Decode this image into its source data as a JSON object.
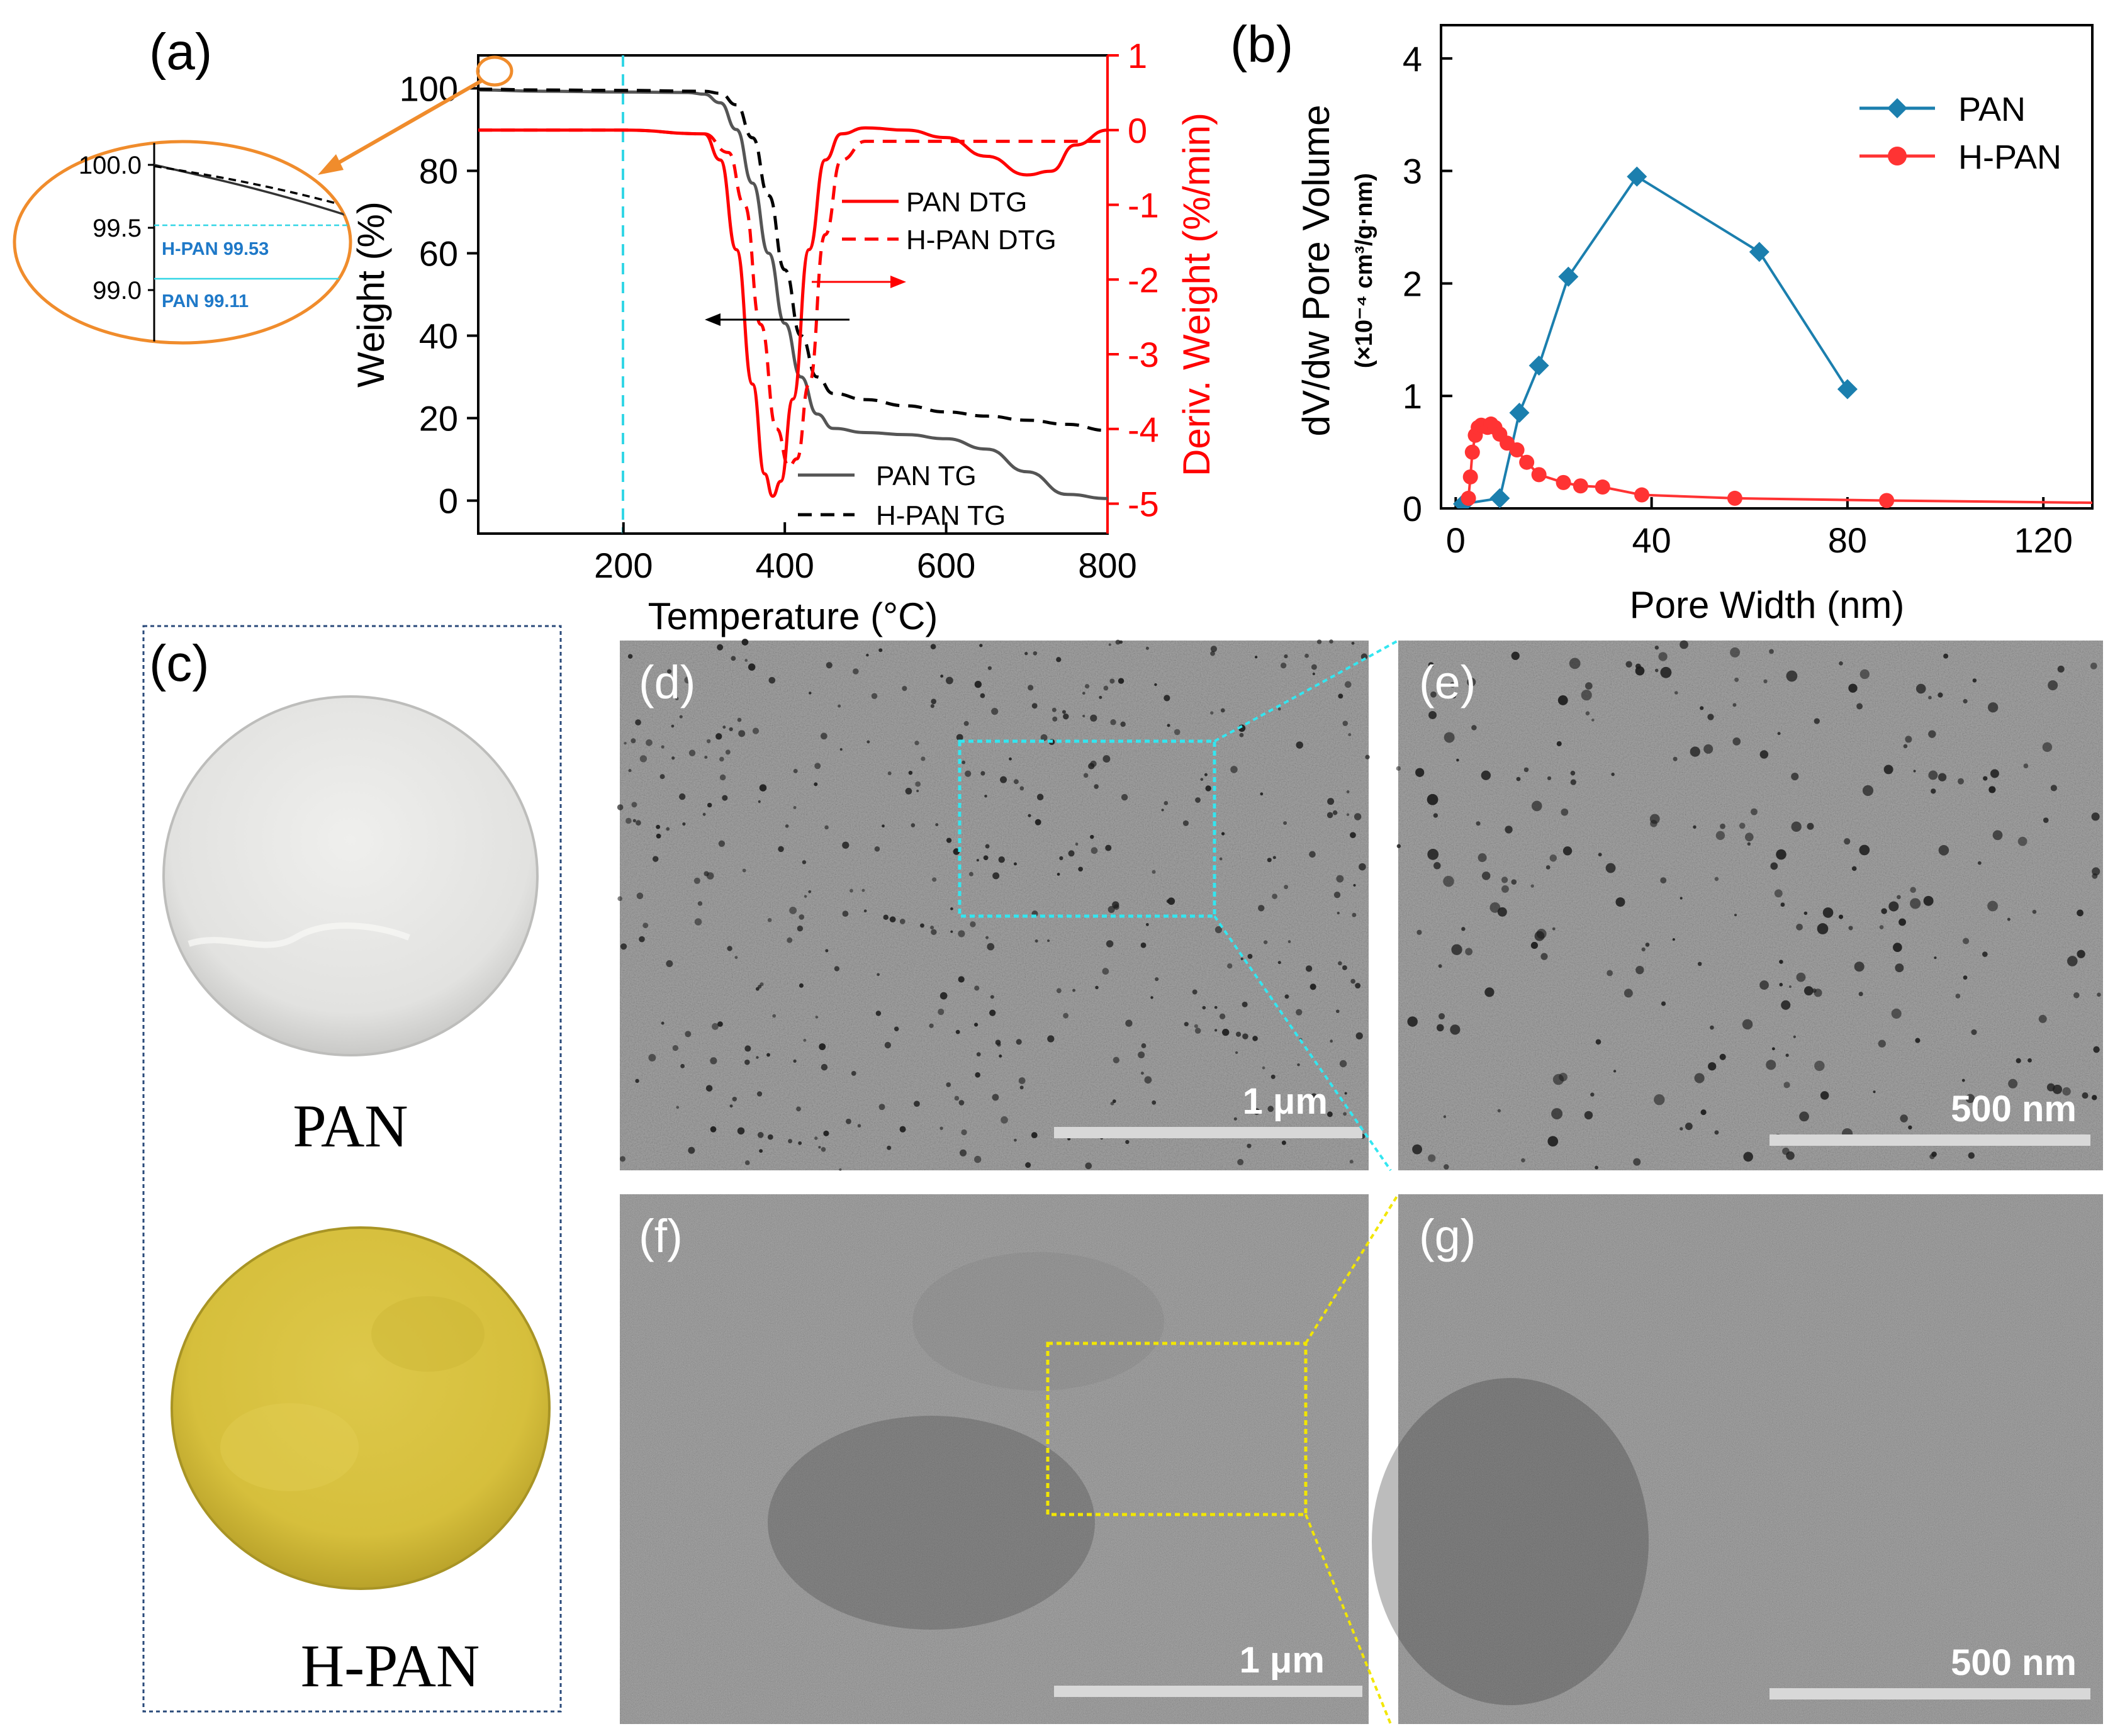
{
  "figure": {
    "panel_labels": {
      "a": "(a)",
      "b": "(b)",
      "c": "(c)",
      "d": "(d)",
      "e": "(e)",
      "f": "(f)",
      "g": "(g)"
    },
    "panel_c": {
      "top_label": "PAN",
      "bottom_label": "H-PAN",
      "top_disc_color": "#e4e4e2",
      "bottom_disc_color": "#d9c33e"
    },
    "sem": {
      "d_scale": "1 μm",
      "e_scale": "500 nm",
      "f_scale": "1 μm",
      "g_scale": "500 nm",
      "d_box_color": "#33e6f0",
      "f_box_color": "#f2e600"
    },
    "inset_a": {
      "ticks": [
        "100.0",
        "99.5",
        "99.0"
      ],
      "hpan_label": "H-PAN 99.53",
      "pan_label": "PAN 99.11",
      "ring_color": "#f08c2c",
      "annot_color": "#1f79c8"
    }
  },
  "chart_data": [
    {
      "id": "a",
      "type": "line",
      "xlabel": "Temperature (°C)",
      "ylabel": "Weight (%)",
      "y2label": "Deriv. Weight (%/min)",
      "xlim": [
        20,
        800
      ],
      "ylim": [
        -8,
        108
      ],
      "y2lim": [
        -5.4,
        1
      ],
      "xticks": [
        200,
        400,
        600,
        800
      ],
      "yticks": [
        0,
        20,
        40,
        60,
        80,
        100
      ],
      "y2ticks": [
        1,
        0,
        -1,
        -2,
        -3,
        -4,
        -5
      ],
      "vline_x": 200,
      "series": [
        {
          "name": "PAN TG",
          "axis": "left",
          "color": "#555555",
          "dash": "solid",
          "x": [
            20,
            100,
            200,
            280,
            300,
            320,
            340,
            360,
            380,
            400,
            420,
            440,
            460,
            500,
            550,
            600,
            650,
            700,
            750,
            800
          ],
          "y": [
            99.6,
            99.3,
            99.1,
            99.0,
            98.6,
            96.5,
            90.0,
            77.0,
            60.0,
            43.0,
            30.0,
            21.0,
            17.5,
            16.5,
            16.0,
            15.0,
            12.5,
            7.0,
            1.5,
            0.5
          ]
        },
        {
          "name": "H-PAN TG",
          "axis": "left",
          "color": "#000000",
          "dash": "dashed",
          "x": [
            20,
            100,
            200,
            300,
            320,
            340,
            360,
            380,
            400,
            420,
            440,
            460,
            500,
            550,
            600,
            650,
            700,
            750,
            800
          ],
          "y": [
            99.8,
            99.6,
            99.5,
            99.3,
            98.8,
            96.0,
            88.0,
            74.0,
            56.0,
            40.0,
            30.0,
            26.0,
            24.5,
            23.0,
            21.5,
            20.5,
            19.5,
            18.5,
            17.0
          ]
        },
        {
          "name": "PAN DTG",
          "axis": "right",
          "color": "#ff0000",
          "dash": "solid",
          "x": [
            20,
            200,
            300,
            320,
            340,
            360,
            375,
            385,
            395,
            410,
            430,
            450,
            470,
            500,
            550,
            600,
            650,
            700,
            730,
            760,
            800
          ],
          "y": [
            0,
            0,
            -0.05,
            -0.4,
            -1.6,
            -3.4,
            -4.6,
            -4.9,
            -4.7,
            -3.6,
            -1.6,
            -0.4,
            -0.05,
            0.03,
            0,
            -0.1,
            -0.35,
            -0.6,
            -0.55,
            -0.2,
            0
          ]
        },
        {
          "name": "H-PAN DTG",
          "axis": "right",
          "color": "#ff0000",
          "dash": "dashed",
          "x": [
            20,
            200,
            300,
            330,
            350,
            370,
            390,
            405,
            415,
            430,
            450,
            470,
            500,
            550,
            600,
            700,
            800
          ],
          "y": [
            0,
            0,
            -0.05,
            -0.3,
            -1.0,
            -2.6,
            -4.0,
            -4.5,
            -4.4,
            -3.4,
            -1.4,
            -0.4,
            -0.15,
            -0.15,
            -0.15,
            -0.15,
            -0.15
          ]
        }
      ],
      "legend": [
        {
          "label": "PAN DTG",
          "color": "#ff0000",
          "dash": "solid"
        },
        {
          "label": "H-PAN DTG",
          "color": "#ff0000",
          "dash": "dashed"
        },
        {
          "label": "PAN TG",
          "color": "#555555",
          "dash": "solid"
        },
        {
          "label": "H-PAN TG",
          "color": "#000000",
          "dash": "dashed"
        }
      ]
    },
    {
      "id": "b",
      "type": "line",
      "xlabel": "Pore Width (nm)",
      "ylabel": "dV/dw Pore Volume",
      "ylabel_units": "(×10⁻⁴ cm³/g·nm)",
      "xlim": [
        -3,
        130
      ],
      "ylim": [
        0,
        4.1
      ],
      "xticks": [
        0,
        40,
        80,
        120
      ],
      "yticks": [
        0,
        1,
        2,
        3,
        4
      ],
      "series": [
        {
          "name": "PAN",
          "color": "#1b7fae",
          "marker": "diamond",
          "x": [
            1.5,
            9,
            13,
            17,
            23,
            37,
            62,
            80
          ],
          "y": [
            0.04,
            0.09,
            0.85,
            1.27,
            2.06,
            2.95,
            2.28,
            1.06
          ]
        },
        {
          "name": "H-PAN",
          "color": "#ff3333",
          "marker": "circle",
          "x": [
            2.6,
            3.0,
            3.4,
            4.0,
            4.6,
            5.2,
            5.8,
            6.5,
            7.2,
            8.0,
            9.0,
            10.5,
            12.5,
            14.5,
            17,
            22,
            25.5,
            30,
            38,
            57,
            88,
            130
          ],
          "y": [
            0.09,
            0.28,
            0.5,
            0.65,
            0.72,
            0.74,
            0.73,
            0.72,
            0.75,
            0.72,
            0.66,
            0.58,
            0.52,
            0.41,
            0.3,
            0.23,
            0.2,
            0.19,
            0.12,
            0.09,
            0.07,
            0.05
          ]
        }
      ]
    }
  ]
}
